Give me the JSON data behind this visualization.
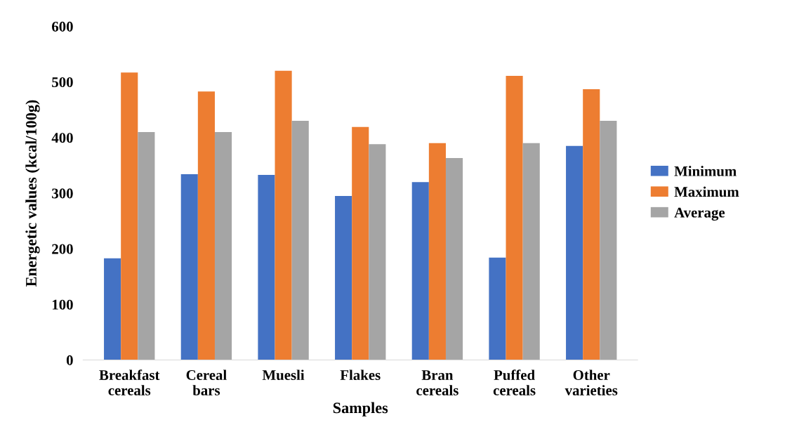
{
  "chart_data": {
    "type": "bar",
    "xlabel": "Samples",
    "ylabel": "Energetic values (kcal/100g)",
    "categories": [
      "Breakfast\ncereals",
      "Cereal\nbars",
      "Muesli",
      "Flakes",
      "Bran\ncereals",
      "Puffed\ncereals",
      "Other\nvarieties"
    ],
    "series": [
      {
        "name": "Minimum",
        "color": "#4472c4",
        "values": [
          183,
          334,
          333,
          295,
          320,
          184,
          385
        ]
      },
      {
        "name": "Maximum",
        "color": "#ed7d31",
        "values": [
          517,
          483,
          520,
          419,
          390,
          511,
          487
        ]
      },
      {
        "name": "Average",
        "color": "#a5a5a5",
        "values": [
          410,
          410,
          430,
          388,
          363,
          390,
          430
        ]
      }
    ],
    "ylim": [
      0,
      600
    ],
    "yticks": [
      0,
      100,
      200,
      300,
      400,
      500,
      600
    ],
    "grid": false,
    "legend": "right"
  }
}
